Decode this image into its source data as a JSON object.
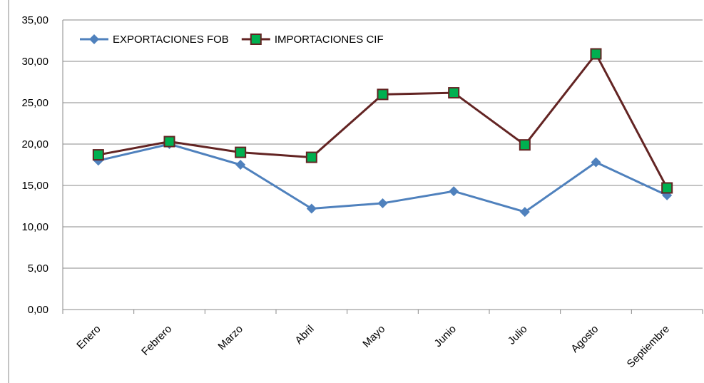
{
  "chart_data": {
    "type": "line",
    "categories": [
      "Enero",
      "Febrero",
      "Marzo",
      "Abril",
      "Mayo",
      "Junio",
      "Julio",
      "Agosto",
      "Septiembre"
    ],
    "series": [
      {
        "name": "EXPORTACIONES FOB",
        "color": "#4f81bd",
        "marker": "diamond",
        "values": [
          18.0,
          20.0,
          17.5,
          12.2,
          12.85,
          14.3,
          11.8,
          17.8,
          13.8
        ]
      },
      {
        "name": "IMPORTACIONES CIF",
        "color": "#632423",
        "marker_color": "#00b050",
        "marker": "square",
        "values": [
          18.7,
          20.3,
          19.0,
          18.4,
          26.0,
          26.2,
          19.9,
          30.9,
          14.7
        ]
      }
    ],
    "ylim": [
      0,
      35
    ],
    "yticks": [
      {
        "value": 0,
        "label": "0,00"
      },
      {
        "value": 5,
        "label": "5,00"
      },
      {
        "value": 10,
        "label": "10,00"
      },
      {
        "value": 15,
        "label": "15,00"
      },
      {
        "value": 20,
        "label": "20,00"
      },
      {
        "value": 25,
        "label": "25,00"
      },
      {
        "value": 30,
        "label": "30,00"
      },
      {
        "value": 35,
        "label": "35,00"
      }
    ],
    "grid": true,
    "legend": "top-left"
  }
}
